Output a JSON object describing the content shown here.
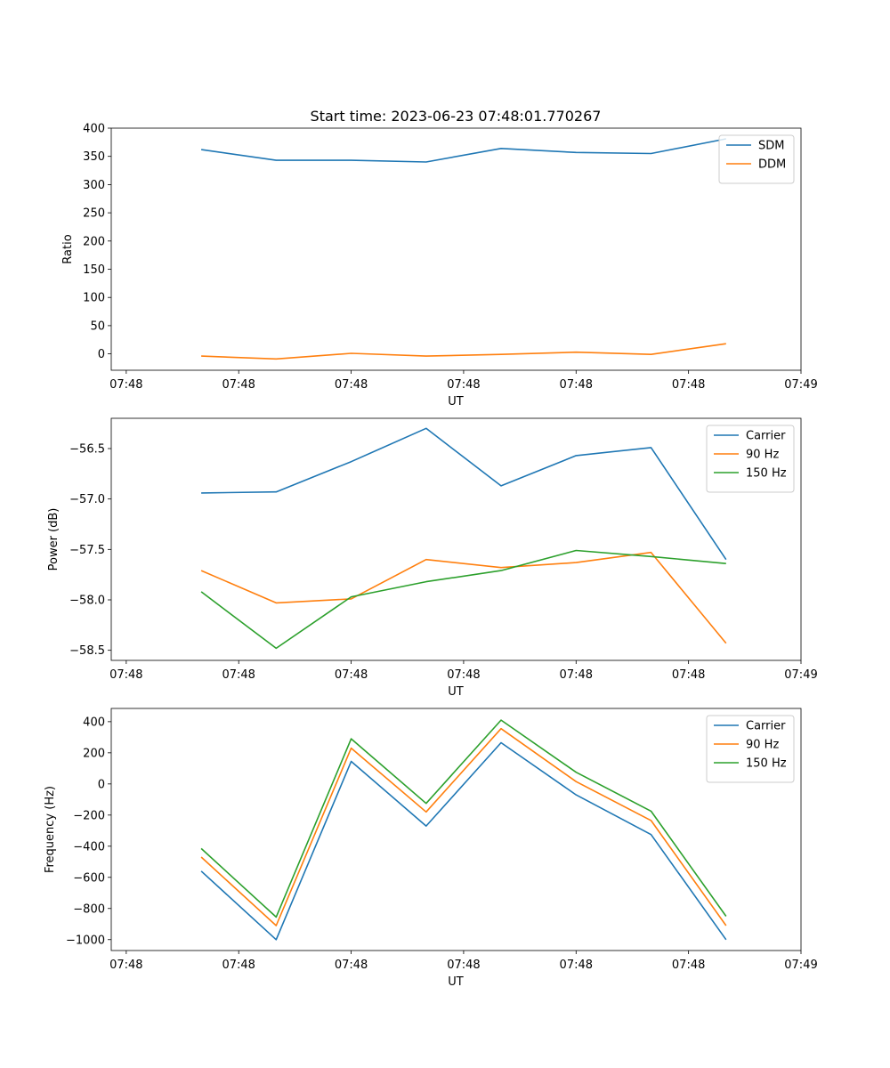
{
  "figure_title": "Start time: 2023-06-23 07:48:01.770267",
  "chart_data": [
    {
      "type": "line",
      "title": "Start time: 2023-06-23 07:48:01.770267",
      "xlabel": "UT",
      "ylabel": "Ratio",
      "x": [
        1.5,
        2.5,
        3.5,
        4.5,
        5.5,
        6.5,
        7.5,
        8.5
      ],
      "xlim": [
        0.3,
        9.5
      ],
      "xticks": [
        0.5,
        2.0,
        3.5,
        5.0,
        6.5,
        8.0,
        9.5
      ],
      "xtick_labels": [
        "07:48",
        "07:48",
        "07:48",
        "07:48",
        "07:48",
        "07:48",
        "07:49"
      ],
      "ylim": [
        -29,
        400
      ],
      "yticks": [
        0,
        50,
        100,
        150,
        200,
        250,
        300,
        350,
        400
      ],
      "ytick_labels": [
        "0",
        "50",
        "100",
        "150",
        "200",
        "250",
        "300",
        "350",
        "400"
      ],
      "grid": false,
      "legend_position": "upper right",
      "series": [
        {
          "name": "SDM",
          "color": "#1f77b4",
          "values": [
            362,
            343,
            343,
            340,
            364,
            357,
            355,
            381
          ]
        },
        {
          "name": "DDM",
          "color": "#ff7f0e",
          "values": [
            -4,
            -9,
            1,
            -4,
            -1,
            3,
            -1,
            18
          ]
        }
      ]
    },
    {
      "type": "line",
      "title": "",
      "xlabel": "UT",
      "ylabel": "Power (dB)",
      "x": [
        1.5,
        2.5,
        3.5,
        4.5,
        5.5,
        6.5,
        7.5,
        8.5
      ],
      "xlim": [
        0.3,
        9.5
      ],
      "xticks": [
        0.5,
        2.0,
        3.5,
        5.0,
        6.5,
        8.0,
        9.5
      ],
      "xtick_labels": [
        "07:48",
        "07:48",
        "07:48",
        "07:48",
        "07:48",
        "07:48",
        "07:49"
      ],
      "ylim": [
        -58.6,
        -56.2
      ],
      "yticks": [
        -58.5,
        -58.0,
        -57.5,
        -57.0,
        -56.5
      ],
      "ytick_labels": [
        "−58.5",
        "−58.0",
        "−57.5",
        "−57.0",
        "−56.5"
      ],
      "grid": false,
      "legend_position": "upper right",
      "series": [
        {
          "name": "Carrier",
          "color": "#1f77b4",
          "values": [
            -56.94,
            -56.93,
            -56.63,
            -56.3,
            -56.87,
            -56.57,
            -56.49,
            -57.6
          ]
        },
        {
          "name": "90 Hz",
          "color": "#ff7f0e",
          "values": [
            -57.71,
            -58.03,
            -57.99,
            -57.6,
            -57.68,
            -57.63,
            -57.53,
            -58.43
          ]
        },
        {
          "name": "150 Hz",
          "color": "#2ca02c",
          "values": [
            -57.92,
            -58.48,
            -57.97,
            -57.82,
            -57.71,
            -57.51,
            -57.57,
            -57.64
          ]
        }
      ]
    },
    {
      "type": "line",
      "title": "",
      "xlabel": "UT",
      "ylabel": "Frequency (Hz)",
      "x": [
        1.5,
        2.5,
        3.5,
        4.5,
        5.5,
        6.5,
        7.5,
        8.5
      ],
      "xlim": [
        0.3,
        9.5
      ],
      "xticks": [
        0.5,
        2.0,
        3.5,
        5.0,
        6.5,
        8.0,
        9.5
      ],
      "xtick_labels": [
        "07:48",
        "07:48",
        "07:48",
        "07:48",
        "07:48",
        "07:48",
        "07:49"
      ],
      "ylim": [
        -1070,
        485
      ],
      "yticks": [
        -1000,
        -800,
        -600,
        -400,
        -200,
        0,
        200,
        400
      ],
      "ytick_labels": [
        "−1000",
        "−800",
        "−600",
        "−400",
        "−200",
        "0",
        "200",
        "400"
      ],
      "grid": false,
      "legend_position": "upper right",
      "series": [
        {
          "name": "Carrier",
          "color": "#1f77b4",
          "values": [
            -560,
            -1000,
            145,
            -270,
            265,
            -70,
            -325,
            -1000
          ]
        },
        {
          "name": "90 Hz",
          "color": "#ff7f0e",
          "values": [
            -470,
            -910,
            230,
            -180,
            355,
            15,
            -235,
            -910
          ]
        },
        {
          "name": "150 Hz",
          "color": "#2ca02c",
          "values": [
            -415,
            -855,
            290,
            -125,
            410,
            75,
            -175,
            -850
          ]
        }
      ]
    }
  ]
}
